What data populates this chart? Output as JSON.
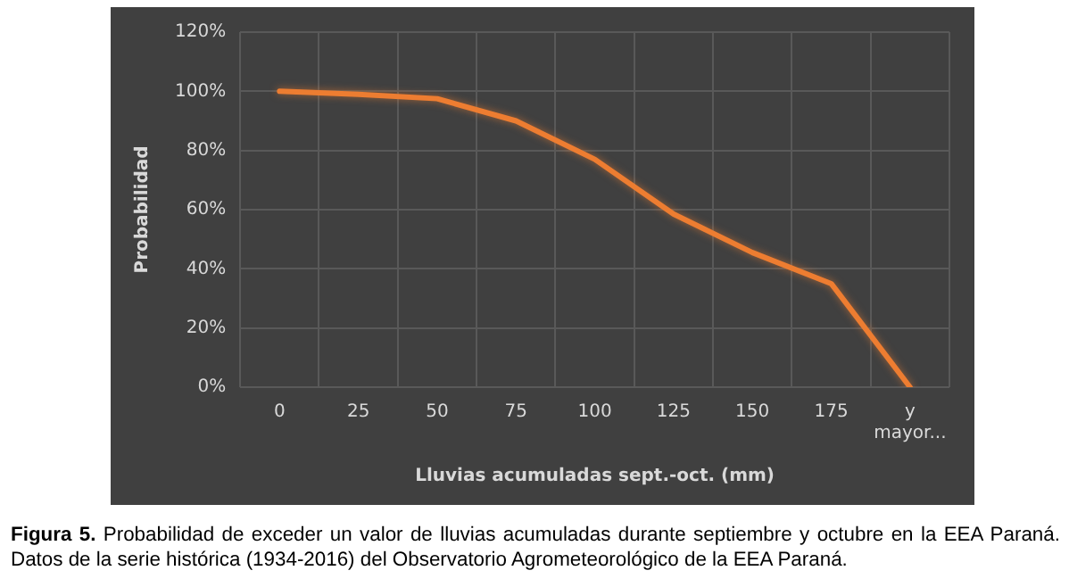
{
  "chart_data": {
    "type": "line",
    "xlabel": "Lluvias acumuladas sept.-oct. (mm)",
    "ylabel": "Probabilidad",
    "categories": [
      "0",
      "25",
      "50",
      "75",
      "100",
      "125",
      "150",
      "175",
      "y mayor..."
    ],
    "series": [
      {
        "color": "#ed7d31",
        "values": [
          100,
          99,
          97.5,
          90,
          77,
          58.5,
          45.5,
          35,
          0
        ]
      }
    ],
    "ylim": [
      0,
      120
    ],
    "yticks": [
      {
        "value": 0,
        "label": "0%"
      },
      {
        "value": 20,
        "label": "20%"
      },
      {
        "value": 40,
        "label": "40%"
      },
      {
        "value": 60,
        "label": "60%"
      },
      {
        "value": 80,
        "label": "80%"
      },
      {
        "value": 100,
        "label": "100%"
      },
      {
        "value": 120,
        "label": "120%"
      }
    ],
    "grid": true,
    "legend": false,
    "marker": "none",
    "line_style": "solid",
    "annotations": [
      "Figura 5. Probabilidad de exceder un valor de lluvias acumuladas durante septiembre y octubre en la EEA Paraná. Datos de la serie histórica (1934-2016) del Observatorio Agrometeorológico de la EEA Paraná."
    ]
  }
}
